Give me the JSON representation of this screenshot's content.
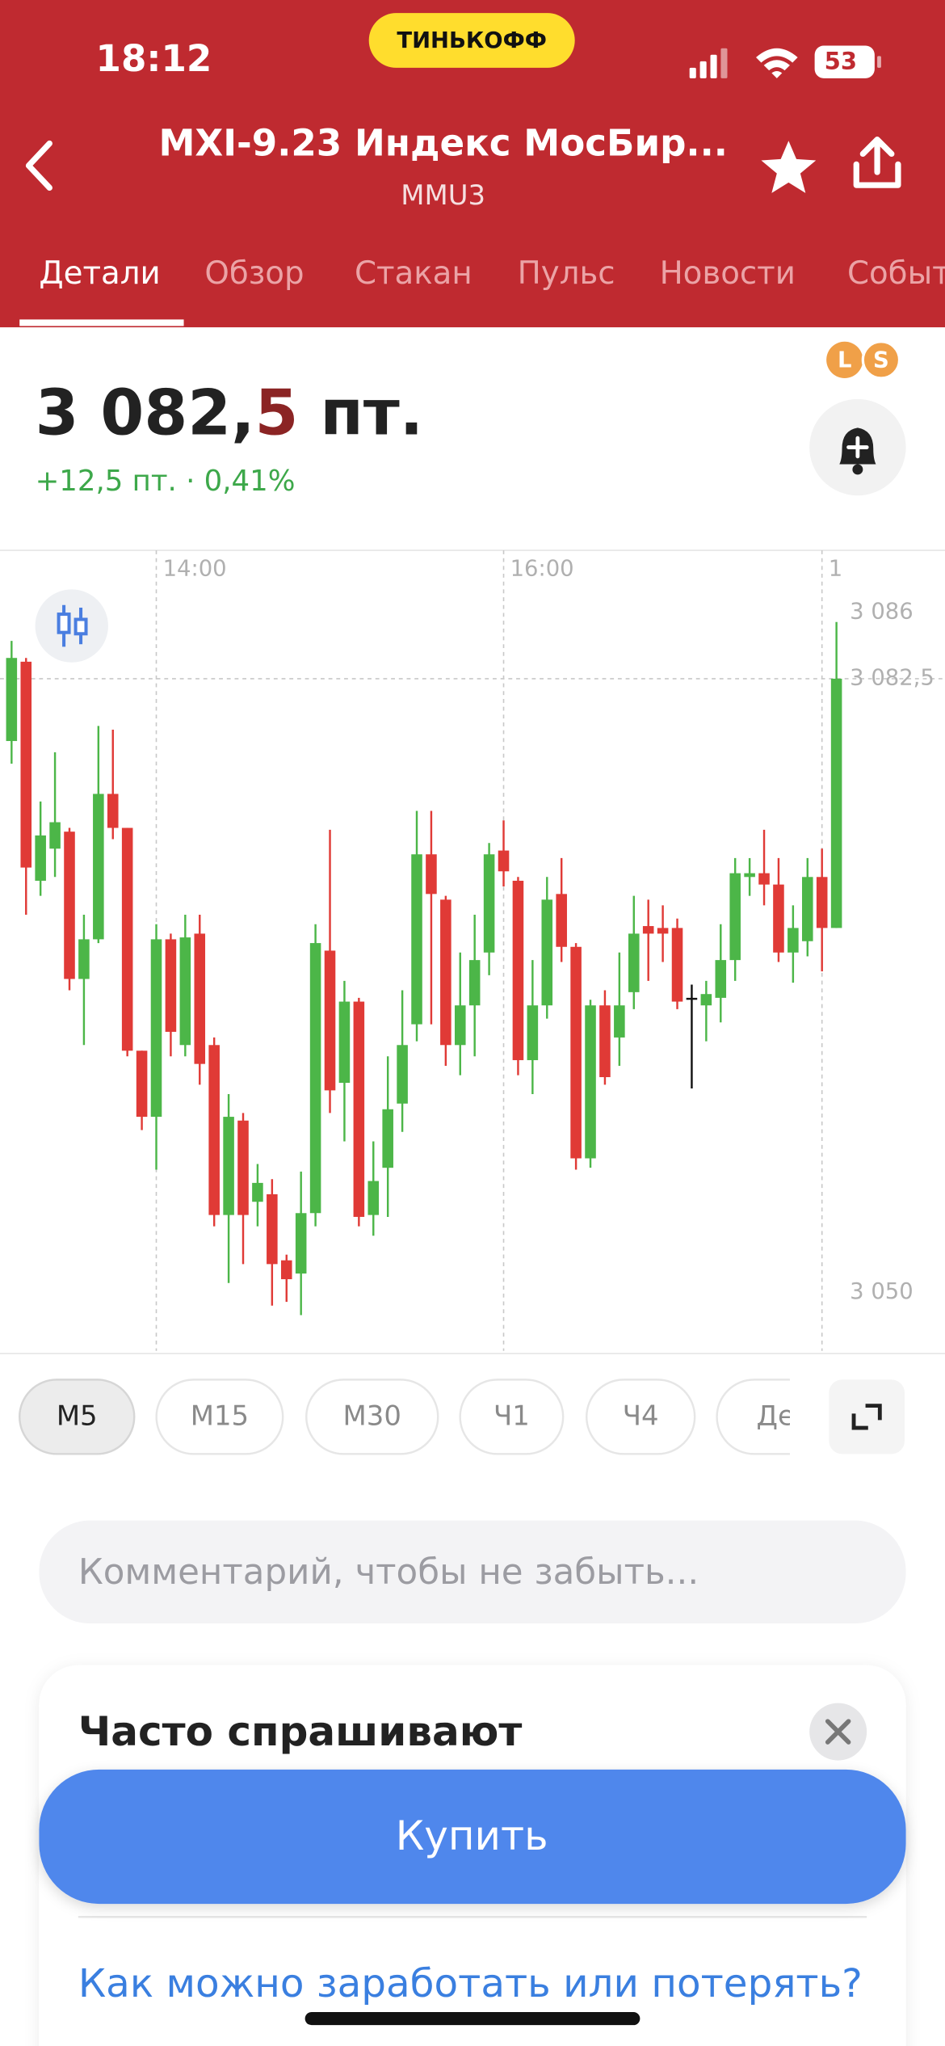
{
  "status_bar": {
    "time": "18:12",
    "brand": "ТИНЬКОФФ",
    "battery": "53"
  },
  "header": {
    "title": "MXI-9.23 Индекс МосБир...",
    "ticker": "MMU3"
  },
  "tabs": [
    "Детали",
    "Обзор",
    "Стакан",
    "Пульс",
    "Новости",
    "Событ"
  ],
  "badges": [
    "L",
    "S"
  ],
  "price": {
    "main": "3 082,",
    "last_digit": "5",
    "unit": " пт.",
    "change": "+12,5 пт. · 0,41%"
  },
  "chart_data": {
    "type": "candlestick",
    "xlim": [
      -0.8,
      64.5
    ],
    "xticks": [
      {
        "value": 10,
        "label": "14:00"
      },
      {
        "value": 34,
        "label": "16:00"
      },
      {
        "value": 56,
        "label": "1"
      }
    ],
    "ylim": [
      3046.9,
      3089.3
    ],
    "yticks": [
      {
        "value": 3086,
        "label": "3 086"
      },
      {
        "value": 3082.5,
        "label": "3 082,5"
      },
      {
        "value": 3050,
        "label": "3 050"
      }
    ],
    "hline": 3082.5,
    "xgrid": true,
    "up_color": "#4cb648",
    "down_color": "#e03a36",
    "flat_color": "#111111",
    "open": [
      3079.2,
      3083.4,
      3071.8,
      3073.5,
      3074.4,
      3066.6,
      3068.7,
      3076.4,
      3074.6,
      3062.8,
      3059.3,
      3068.7,
      3063.1,
      3069,
      3063.1,
      3054.1,
      3059.1,
      3054.8,
      3055.2,
      3051.7,
      3051,
      3054.2,
      3068.1,
      3061.1,
      3065.4,
      3054.1,
      3056.6,
      3060,
      3064.2,
      3073.2,
      3070.8,
      3063.1,
      3065.2,
      3068,
      3073.4,
      3071.8,
      3062.3,
      3065.2,
      3071.1,
      3068.3,
      3057.1,
      3065.2,
      3063.5,
      3065.9,
      3069.4,
      3069.3,
      3069.3,
      3065.6,
      3065.2,
      3065.6,
      3067.6,
      3072,
      3072.2,
      3071.6,
      3068,
      3068.6,
      3072,
      3069.3
    ],
    "high": [
      3084.5,
      3083.6,
      3076,
      3078.6,
      3074.6,
      3070,
      3080,
      3079.8,
      3074.6,
      3062.8,
      3069.5,
      3069,
      3070,
      3070,
      3063.5,
      3060.5,
      3059.5,
      3056.8,
      3056,
      3052,
      3056.4,
      3069.5,
      3074.5,
      3066.5,
      3065.6,
      3058,
      3062.5,
      3066,
      3075.5,
      3075.5,
      3071,
      3068,
      3070,
      3073.8,
      3075,
      3072,
      3067.6,
      3072,
      3073,
      3068.5,
      3065.5,
      3066,
      3068,
      3071,
      3070.8,
      3070.5,
      3069.8,
      3066.3,
      3066.5,
      3069.5,
      3073,
      3073,
      3074.5,
      3073,
      3070.5,
      3073,
      3073.5,
      3085.5
    ],
    "low": [
      3078,
      3070,
      3071,
      3072,
      3066,
      3063.1,
      3068.5,
      3074,
      3062.5,
      3058.6,
      3056.5,
      3062.5,
      3062.5,
      3061,
      3053.5,
      3050.5,
      3051.5,
      3053.5,
      3049.3,
      3049.5,
      3048.8,
      3053.5,
      3059.5,
      3058,
      3053.5,
      3053,
      3054,
      3058.5,
      3063.3,
      3064.2,
      3062,
      3061.5,
      3062.5,
      3066.8,
      3071.5,
      3061.5,
      3060.5,
      3064.5,
      3067.5,
      3056.5,
      3056.6,
      3061,
      3062,
      3065,
      3066.5,
      3067.5,
      3065,
      3060.8,
      3063.3,
      3064.3,
      3066.5,
      3071,
      3070.5,
      3067.5,
      3066.4,
      3067.8,
      3067,
      3069.3
    ],
    "close": [
      3083.6,
      3072.5,
      3074.2,
      3074.9,
      3066.6,
      3068.7,
      3076.4,
      3074.6,
      3062.8,
      3059.3,
      3068.7,
      3063.8,
      3068.8,
      3062.1,
      3054.1,
      3059.3,
      3054.1,
      3055.8,
      3051.5,
      3050.7,
      3054.2,
      3068.5,
      3060.7,
      3065.4,
      3054,
      3055.9,
      3059.7,
      3063.1,
      3073.2,
      3071.1,
      3063.1,
      3065.2,
      3067.6,
      3073.2,
      3072.3,
      3062.3,
      3065.2,
      3070.8,
      3068.3,
      3057.1,
      3065.2,
      3061.4,
      3065.2,
      3069,
      3069,
      3069,
      3065.4,
      3065.6,
      3065.8,
      3067.6,
      3072.2,
      3072.2,
      3071.6,
      3068,
      3069.3,
      3072,
      3069.3,
      3082.5
    ]
  },
  "timeframes": [
    "M5",
    "M15",
    "M30",
    "Ч1",
    "Ч4",
    "Де"
  ],
  "comment_placeholder": "Комментарий, чтобы не забыть...",
  "faq": {
    "title": "Часто спрашивают",
    "question": "Как можно заработать или потерять?"
  },
  "buy_button": "Купить"
}
